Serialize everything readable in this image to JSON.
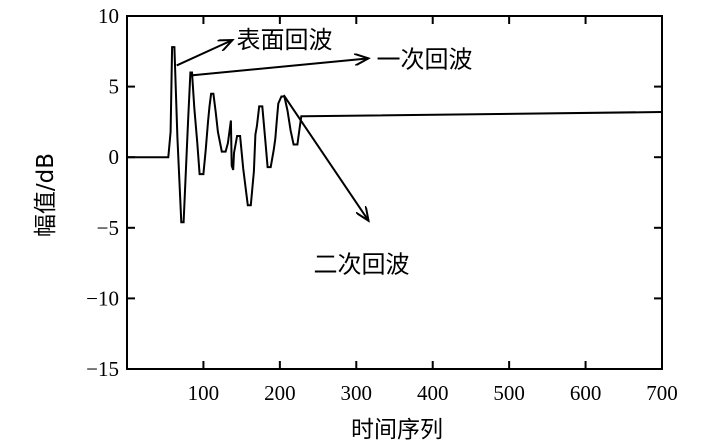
{
  "chart_data": {
    "type": "line",
    "xlabel": "时间序列",
    "ylabel": "幅值/dB",
    "xlim": [
      0,
      700
    ],
    "ylim": [
      -15,
      10
    ],
    "xticks": [
      100,
      200,
      300,
      400,
      500,
      600,
      700
    ],
    "yticks": [
      10,
      5,
      0,
      -5,
      -10,
      -15
    ],
    "xtick_labels": [
      "100",
      "200",
      "300",
      "400",
      "500",
      "600",
      "700"
    ],
    "ytick_labels": [
      "10",
      "5",
      "0",
      "−5",
      "−10",
      "−15"
    ],
    "grid": false,
    "series": [
      {
        "x": [
          0,
          50,
          54,
          57,
          59,
          62,
          66,
          71,
          74,
          78,
          80,
          83,
          85,
          88,
          92,
          95,
          100,
          103,
          106,
          108,
          110,
          113,
          116,
          119,
          124,
          129,
          132,
          136,
          137,
          139,
          140,
          144,
          148,
          152,
          158,
          162,
          166,
          168,
          170,
          173,
          177,
          181,
          184,
          188,
          192,
          194,
          196,
          198,
          202,
          206,
          210,
          214,
          218,
          223,
          226,
          228,
          232,
          700
        ],
        "y": [
          0,
          0,
          0,
          1.8,
          7.8,
          7.8,
          1.4,
          -4.6,
          -4.6,
          0.2,
          2.6,
          6,
          6,
          3.5,
          1,
          -1.2,
          -1.2,
          0.5,
          2.5,
          3.6,
          4.5,
          4.5,
          3.2,
          1.8,
          0.4,
          0.4,
          1,
          2.6,
          -0.6,
          -0.9,
          0.3,
          1.5,
          1.5,
          -0.8,
          -3.4,
          -3.4,
          -1,
          1.6,
          2.2,
          3.6,
          3.6,
          1.2,
          -0.7,
          -0.7,
          0.5,
          1.3,
          2.6,
          3.8,
          4.3,
          4.3,
          3.3,
          1.9,
          0.9,
          0.9,
          2.1,
          2.9,
          2.9,
          3.2
        ]
      }
    ],
    "annotations": [
      {
        "text": "表面回波",
        "from": [
          65,
          6.5
        ],
        "to": [
          138,
          8.3
        ]
      },
      {
        "text": "一次回波",
        "from": [
          86,
          5.8
        ],
        "to": [
          316,
          7
        ]
      },
      {
        "text": "二次回波",
        "from": [
          205,
          4.4
        ],
        "to": [
          316,
          -4.5
        ]
      }
    ]
  }
}
